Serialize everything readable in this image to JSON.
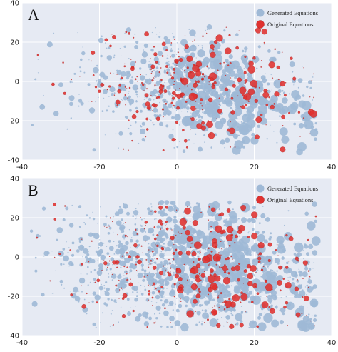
{
  "chart_data": [
    {
      "type": "scatter",
      "panel_label": "A",
      "xlim": [
        -40,
        40
      ],
      "ylim": [
        -40,
        40
      ],
      "xticks": [
        -40,
        -20,
        0,
        20,
        40
      ],
      "yticks": [
        40,
        20,
        0,
        -20,
        -40
      ],
      "grid": true,
      "legend_position": "top-right",
      "series": [
        {
          "name": "Generated Equations",
          "color": "#9fb9d6",
          "point_cloud": "dense embedding cluster spanning x -30..32, y -35..28"
        },
        {
          "name": "Original Equations",
          "color": "#e0312f",
          "point_cloud": "interspersed within generated cluster"
        }
      ]
    },
    {
      "type": "scatter",
      "panel_label": "B",
      "xlim": [
        -40,
        40
      ],
      "ylim": [
        -40,
        40
      ],
      "xticks": [
        -40,
        -20,
        0,
        20,
        40
      ],
      "yticks": [
        40,
        20,
        0,
        -20,
        -40
      ],
      "grid": true,
      "legend_position": "top-right",
      "series": [
        {
          "name": "Generated Equations",
          "color": "#9fb9d6",
          "point_cloud": "denser embedding cluster spanning x -38..35, y -35..30"
        },
        {
          "name": "Original Equations",
          "color": "#e0312f",
          "point_cloud": "interspersed within generated cluster"
        }
      ]
    }
  ]
}
